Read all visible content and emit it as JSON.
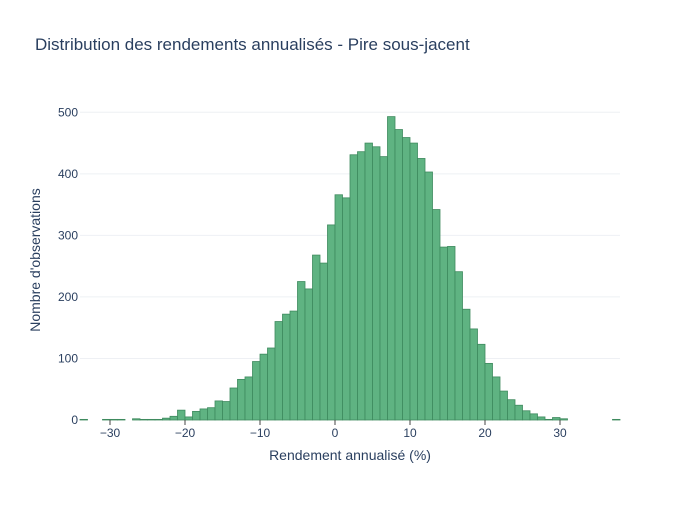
{
  "chart_data": {
    "type": "bar",
    "title": "Distribution des rendements annualisés - Pire sous-jacent",
    "xlabel": "Rendement annualisé (%)",
    "ylabel": "Nombre d'observations",
    "xlim": [
      -34,
      38
    ],
    "ylim": [
      0,
      520
    ],
    "x_ticks": [
      -30,
      -20,
      -10,
      0,
      10,
      20,
      30
    ],
    "y_ticks": [
      0,
      100,
      200,
      300,
      400,
      500
    ],
    "grid": true,
    "legend": "none",
    "colors": {
      "bar_fill": "#5fb382",
      "bar_stroke": "#3e8a5e",
      "grid": "#eef0f4",
      "text": "#2a3f5f"
    },
    "bin_width": 1,
    "bin_start": [
      -34,
      -33,
      -32,
      -31,
      -30,
      -29,
      -28,
      -27,
      -26,
      -25,
      -24,
      -23,
      -22,
      -21,
      -20,
      -19,
      -18,
      -17,
      -16,
      -15,
      -14,
      -13,
      -12,
      -11,
      -10,
      -9,
      -8,
      -7,
      -6,
      -5,
      -4,
      -3,
      -2,
      -1,
      0,
      1,
      2,
      3,
      4,
      5,
      6,
      7,
      8,
      9,
      10,
      11,
      12,
      13,
      14,
      15,
      16,
      17,
      18,
      19,
      20,
      21,
      22,
      23,
      24,
      25,
      26,
      27,
      28,
      29,
      30,
      31,
      32,
      33,
      34,
      35,
      36,
      37
    ],
    "values": [
      1,
      0,
      0,
      1,
      1,
      1,
      0,
      2,
      1,
      1,
      1,
      3,
      6,
      16,
      5,
      14,
      18,
      20,
      31,
      30,
      52,
      66,
      70,
      95,
      107,
      117,
      160,
      172,
      177,
      225,
      213,
      268,
      255,
      317,
      366,
      361,
      431,
      436,
      450,
      444,
      428,
      493,
      472,
      459,
      450,
      425,
      403,
      342,
      281,
      282,
      241,
      180,
      148,
      123,
      92,
      70,
      47,
      33,
      24,
      15,
      10,
      5,
      1,
      4,
      2,
      0,
      0,
      0,
      0,
      0,
      0,
      1
    ]
  }
}
